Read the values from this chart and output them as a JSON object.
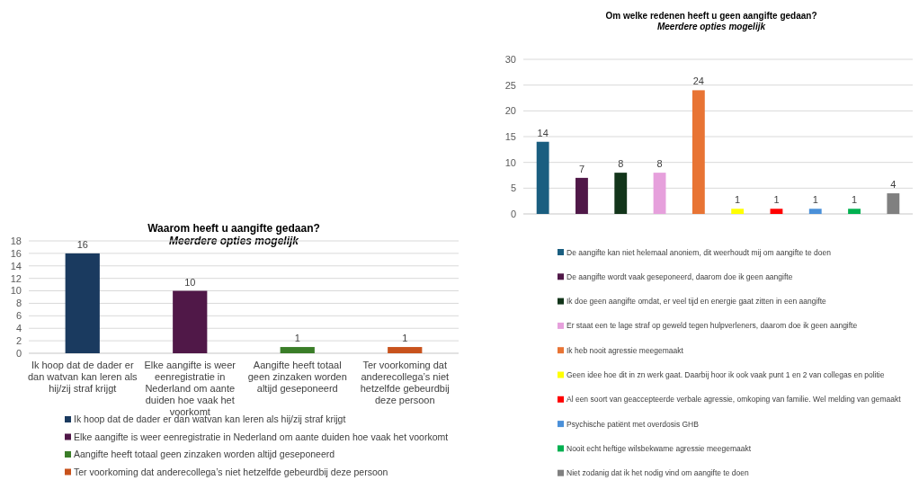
{
  "chart_data": [
    {
      "type": "bar",
      "title": "Waarom heeft u aangifte gedaan?",
      "subtitle": "Meerdere opties mogelijk",
      "categories": [
        "Ik hoop dat de dader er dan watvan kan leren als hij/zij straf krijgt",
        "Elke aangifte is weer eenregistratie in Nederland om aante duiden hoe vaak het voorkomt",
        "Aangifte heeft totaal geen zinzaken worden altijd geseponeerd",
        "Ter voorkoming dat anderecollega’s niet hetzelfde gebeurdbij deze persoon"
      ],
      "series": [
        {
          "name": "Ik hoop dat de dader er dan watvan kan leren als hij/zij straf krijgt",
          "color": "#1a3a5f",
          "values": [
            16,
            null,
            null,
            null
          ]
        },
        {
          "name": "Elke aangifte is weer eenregistratie in Nederland om aante duiden hoe vaak het voorkomt",
          "color": "#501848",
          "values": [
            null,
            10,
            null,
            null
          ]
        },
        {
          "name": "Aangifte heeft totaal geen zinzaken worden altijd geseponeerd",
          "color": "#3a7d28",
          "values": [
            null,
            null,
            1,
            null
          ]
        },
        {
          "name": "Ter voorkoming dat anderecollega’s niet hetzelfde gebeurdbij deze persoon",
          "color": "#c8521c",
          "values": [
            null,
            null,
            null,
            1
          ]
        }
      ],
      "ylim": [
        0,
        18
      ],
      "yticks": [
        0,
        2,
        4,
        6,
        8,
        10,
        12,
        14,
        16,
        18
      ],
      "grid": "y",
      "data_labels": true,
      "legend": "bottom"
    },
    {
      "type": "bar",
      "title": "Om welke redenen heeft u geen aangifte gedaan?",
      "subtitle": "Meerdere opties mogelijk",
      "categories": [
        null,
        null,
        null,
        null,
        null,
        null,
        null,
        null,
        null,
        null
      ],
      "series": [
        {
          "name": "De aangifte kan niet helemaal anoniem, dit weerhoudt mij om aangifte te doen",
          "color": "#1a5e80",
          "values": [
            14,
            null,
            null,
            null,
            null,
            null,
            null,
            null,
            null,
            null
          ]
        },
        {
          "name": "De aangifte wordt vaak geseponeerd, daarom doe ik geen aangifte",
          "color": "#501848",
          "values": [
            null,
            7,
            null,
            null,
            null,
            null,
            null,
            null,
            null,
            null
          ]
        },
        {
          "name": "Ik doe geen aangifte omdat, er veel tijd en energie gaat zitten in een aangifte",
          "color": "#12351a",
          "values": [
            null,
            null,
            8,
            null,
            null,
            null,
            null,
            null,
            null,
            null
          ]
        },
        {
          "name": "Er staat een te lage straf op geweld tegen hulpverleners, daarom doe ik geen aangifte",
          "color": "#e6a0dc",
          "values": [
            null,
            null,
            null,
            8,
            null,
            null,
            null,
            null,
            null,
            null
          ]
        },
        {
          "name": "Ik heb nooit agressie meegemaakt",
          "color": "#e87434",
          "values": [
            null,
            null,
            null,
            null,
            24,
            null,
            null,
            null,
            null,
            null
          ]
        },
        {
          "name": "Geen idee hoe dit in zn werk gaat. Daarbij hoor ik ook vaak punt 1 en 2 van collegas en politie",
          "color": "#ffff00",
          "values": [
            null,
            null,
            null,
            null,
            null,
            1,
            null,
            null,
            null,
            null
          ]
        },
        {
          "name": "Al een soort van geaccepteerde verbale agressie, omkoping van familie. Wel melding van gemaakt",
          "color": "#ff0000",
          "values": [
            null,
            null,
            null,
            null,
            null,
            null,
            1,
            null,
            null,
            null
          ]
        },
        {
          "name": "Psychische patiënt met overdosis GHB",
          "color": "#4a90d9",
          "values": [
            null,
            null,
            null,
            null,
            null,
            null,
            null,
            1,
            null,
            null
          ]
        },
        {
          "name": "Nooit echt heftige wilsbekwame agressie meegemaakt",
          "color": "#00b050",
          "values": [
            null,
            null,
            null,
            null,
            null,
            null,
            null,
            null,
            1,
            null
          ]
        },
        {
          "name": "Niet zodanig dat ik het nodig vind om aangifte te doen",
          "color": "#808080",
          "values": [
            null,
            null,
            null,
            null,
            null,
            null,
            null,
            null,
            null,
            4
          ]
        }
      ],
      "ylim": [
        0,
        30
      ],
      "yticks": [
        0,
        5,
        10,
        15,
        20,
        25,
        30
      ],
      "grid": "y",
      "data_labels": true,
      "legend": "bottom"
    }
  ]
}
